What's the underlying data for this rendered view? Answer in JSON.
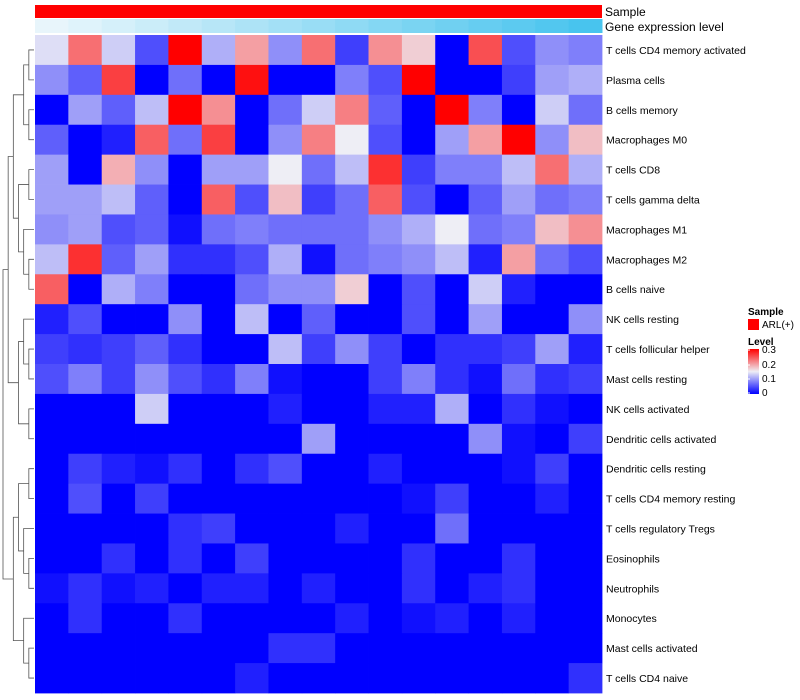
{
  "chart_data": {
    "type": "heatmap",
    "annotation_rows": [
      {
        "name": "Sample"
      },
      {
        "name": "Gene expression level"
      }
    ],
    "rows": [
      "T cells CD4 memory activated",
      "Plasma cells",
      "B cells memory",
      "Macrophages M0",
      "T cells CD8",
      "T cells gamma delta",
      "Macrophages M1",
      "Macrophages M2",
      "B cells naive",
      "NK cells resting",
      "T cells follicular helper",
      "Mast cells resting",
      "NK cells activated",
      "Dendritic cells activated",
      "Dendritic cells resting",
      "T cells CD4 memory resting",
      "T cells regulatory  Tregs",
      "Eosinophils",
      "Neutrophils",
      "Monocytes",
      "Mast cells activated",
      "T cells CD4 naive"
    ],
    "n_columns": 17,
    "gene_expression_level": [
      0.05,
      0.1,
      0.16,
      0.22,
      0.28,
      0.34,
      0.4,
      0.46,
      0.52,
      0.58,
      0.64,
      0.7,
      0.76,
      0.82,
      0.88,
      0.94,
      1.0
    ],
    "values": [
      [
        0.14,
        0.23,
        0.13,
        0.05,
        0.3,
        0.11,
        0.2,
        0.09,
        0.23,
        0.04,
        0.21,
        0.17,
        0.0,
        0.25,
        0.05,
        0.09,
        0.08
      ],
      [
        0.09,
        0.06,
        0.26,
        0.0,
        0.07,
        0.0,
        0.29,
        0.0,
        0.0,
        0.08,
        0.05,
        0.3,
        0.0,
        0.0,
        0.04,
        0.1,
        0.11
      ],
      [
        0.0,
        0.1,
        0.06,
        0.12,
        0.3,
        0.21,
        0.0,
        0.07,
        0.13,
        0.22,
        0.06,
        0.0,
        0.3,
        0.08,
        0.0,
        0.13,
        0.07
      ],
      [
        0.06,
        0.0,
        0.02,
        0.24,
        0.07,
        0.26,
        0.0,
        0.09,
        0.22,
        0.15,
        0.05,
        0.0,
        0.1,
        0.2,
        0.3,
        0.09,
        0.18
      ],
      [
        0.1,
        0.0,
        0.19,
        0.09,
        0.0,
        0.1,
        0.1,
        0.15,
        0.07,
        0.12,
        0.27,
        0.04,
        0.08,
        0.08,
        0.12,
        0.23,
        0.11
      ],
      [
        0.1,
        0.1,
        0.12,
        0.06,
        0.0,
        0.24,
        0.05,
        0.18,
        0.04,
        0.07,
        0.24,
        0.05,
        0.0,
        0.06,
        0.1,
        0.07,
        0.08
      ],
      [
        0.09,
        0.1,
        0.05,
        0.06,
        0.01,
        0.07,
        0.08,
        0.07,
        0.07,
        0.07,
        0.09,
        0.11,
        0.15,
        0.07,
        0.08,
        0.18,
        0.21
      ],
      [
        0.12,
        0.27,
        0.06,
        0.1,
        0.03,
        0.03,
        0.05,
        0.11,
        0.01,
        0.07,
        0.08,
        0.09,
        0.12,
        0.02,
        0.2,
        0.07,
        0.05
      ],
      [
        0.24,
        0.0,
        0.11,
        0.08,
        0.0,
        0.0,
        0.07,
        0.09,
        0.09,
        0.17,
        0.0,
        0.05,
        0.0,
        0.13,
        0.02,
        0.0,
        0.0
      ],
      [
        0.02,
        0.05,
        0.0,
        0.0,
        0.09,
        0.0,
        0.12,
        0.0,
        0.06,
        0.0,
        0.0,
        0.05,
        0.0,
        0.1,
        0.0,
        0.0,
        0.09
      ],
      [
        0.04,
        0.03,
        0.04,
        0.06,
        0.03,
        0.0,
        0.0,
        0.12,
        0.04,
        0.09,
        0.04,
        0.0,
        0.03,
        0.03,
        0.04,
        0.1,
        0.02
      ],
      [
        0.05,
        0.08,
        0.04,
        0.09,
        0.05,
        0.03,
        0.08,
        0.01,
        0.0,
        0.0,
        0.04,
        0.08,
        0.03,
        0.01,
        0.07,
        0.03,
        0.04
      ],
      [
        0.0,
        0.0,
        0.0,
        0.13,
        0.0,
        0.0,
        0.0,
        0.02,
        0.0,
        0.0,
        0.02,
        0.02,
        0.11,
        0.0,
        0.03,
        0.01,
        0.0
      ],
      [
        0.0,
        0.0,
        0.0,
        0.0,
        0.0,
        0.0,
        0.0,
        0.0,
        0.1,
        0.0,
        0.0,
        0.0,
        0.0,
        0.09,
        0.01,
        0.0,
        0.04
      ],
      [
        0.0,
        0.04,
        0.02,
        0.01,
        0.03,
        0.0,
        0.03,
        0.05,
        0.0,
        0.0,
        0.02,
        0.0,
        0.0,
        0.0,
        0.01,
        0.04,
        0.0
      ],
      [
        0.0,
        0.05,
        0.0,
        0.04,
        0.0,
        0.0,
        0.0,
        0.0,
        0.0,
        0.0,
        0.0,
        0.01,
        0.04,
        0.0,
        0.0,
        0.02,
        0.0
      ],
      [
        0.0,
        0.0,
        0.0,
        0.0,
        0.03,
        0.04,
        0.0,
        0.0,
        0.0,
        0.02,
        0.0,
        0.0,
        0.07,
        0.0,
        0.0,
        0.0,
        0.0
      ],
      [
        0.0,
        0.0,
        0.03,
        0.0,
        0.03,
        0.0,
        0.04,
        0.0,
        0.0,
        0.0,
        0.0,
        0.03,
        0.0,
        0.0,
        0.03,
        0.0,
        0.0
      ],
      [
        0.01,
        0.03,
        0.01,
        0.02,
        0.0,
        0.02,
        0.02,
        0.0,
        0.02,
        0.0,
        0.0,
        0.03,
        0.0,
        0.02,
        0.03,
        0.0,
        0.0
      ],
      [
        0.0,
        0.03,
        0.0,
        0.0,
        0.03,
        0.0,
        0.0,
        0.0,
        0.0,
        0.02,
        0.0,
        0.01,
        0.02,
        0.0,
        0.02,
        0.0,
        0.0
      ],
      [
        0.0,
        0.0,
        0.0,
        0.0,
        0.0,
        0.0,
        0.0,
        0.03,
        0.03,
        0.0,
        0.0,
        0.0,
        0.0,
        0.0,
        0.0,
        0.0,
        0.0
      ],
      [
        0.0,
        0.0,
        0.0,
        0.0,
        0.0,
        0.0,
        0.02,
        0.0,
        0.0,
        0.0,
        0.0,
        0.0,
        0.0,
        0.0,
        0.0,
        0.0,
        0.03
      ]
    ],
    "color_scale": {
      "min": 0,
      "max": 0.3,
      "low": "#0000ff",
      "mid": "#eeeef5",
      "high": "#ff0000"
    },
    "legend": {
      "sample_title": "Sample",
      "sample_entry": "ARL(+)",
      "sample_color": "#ff0000",
      "level_title": "Level",
      "level_ticks": [
        "0.3",
        "0.2",
        "0.1",
        "0"
      ]
    },
    "dendrogram": "rows"
  }
}
